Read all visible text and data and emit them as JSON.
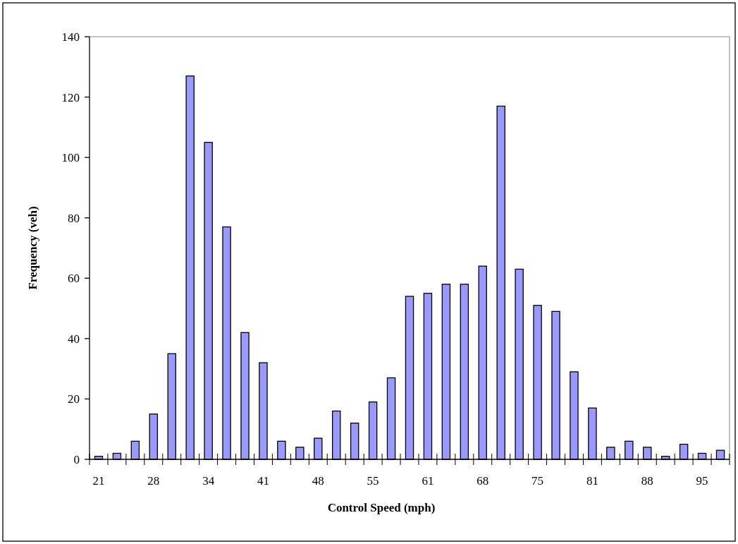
{
  "chart_data": {
    "type": "bar",
    "xlabel": "Control Speed (mph)",
    "ylabel": "Frequency (veh)",
    "categories": [
      "21",
      null,
      null,
      "28",
      null,
      null,
      "34",
      null,
      null,
      "41",
      null,
      null,
      "48",
      null,
      null,
      "55",
      null,
      null,
      "61",
      null,
      null,
      "68",
      null,
      null,
      "75",
      null,
      null,
      "81",
      null,
      null,
      "88",
      null,
      null,
      "95",
      null
    ],
    "values": [
      1,
      2,
      6,
      15,
      35,
      127,
      105,
      77,
      42,
      32,
      6,
      4,
      7,
      16,
      12,
      19,
      27,
      54,
      55,
      58,
      58,
      64,
      117,
      63,
      51,
      49,
      29,
      17,
      4,
      6,
      4,
      1,
      5,
      2,
      3
    ],
    "color": "#9999ff",
    "ylim": [
      0,
      140
    ],
    "yticks": [
      0,
      20,
      40,
      60,
      80,
      100,
      120,
      140
    ]
  }
}
